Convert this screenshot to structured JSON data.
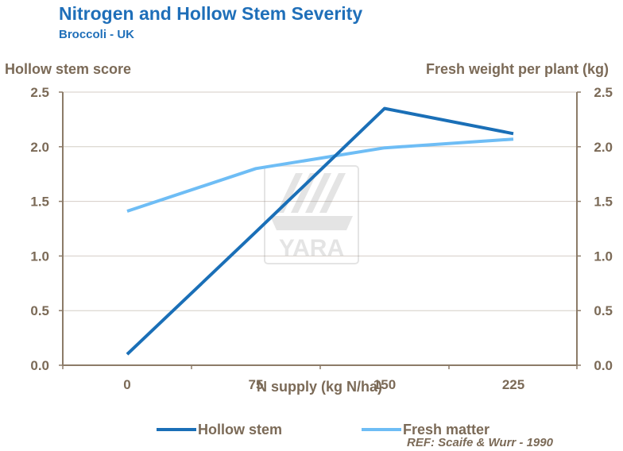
{
  "chart_data": {
    "type": "line",
    "title": "Nitrogen and Hollow Stem Severity",
    "subtitle": "Broccoli - UK",
    "xlabel": "N supply (kg N/ha)",
    "ylabel_left": "Hollow stem score",
    "ylabel_right": "Fresh weight per plant (kg)",
    "categories": [
      "0",
      "75",
      "150",
      "225"
    ],
    "ylim": [
      0,
      2.5
    ],
    "yticks": [
      "0.0",
      "0.5",
      "1.0",
      "1.5",
      "2.0",
      "2.5"
    ],
    "series": [
      {
        "name": "Hollow stem",
        "axis": "left",
        "color": "#1a6fb7",
        "values": [
          0.1,
          1.22,
          2.35,
          2.12
        ]
      },
      {
        "name": "Fresh matter",
        "axis": "right",
        "color": "#6ebdf5",
        "values": [
          1.41,
          1.8,
          1.99,
          2.07
        ]
      }
    ],
    "watermark": "YARA",
    "reference": "REF: Scaife & Wurr - 1990"
  }
}
